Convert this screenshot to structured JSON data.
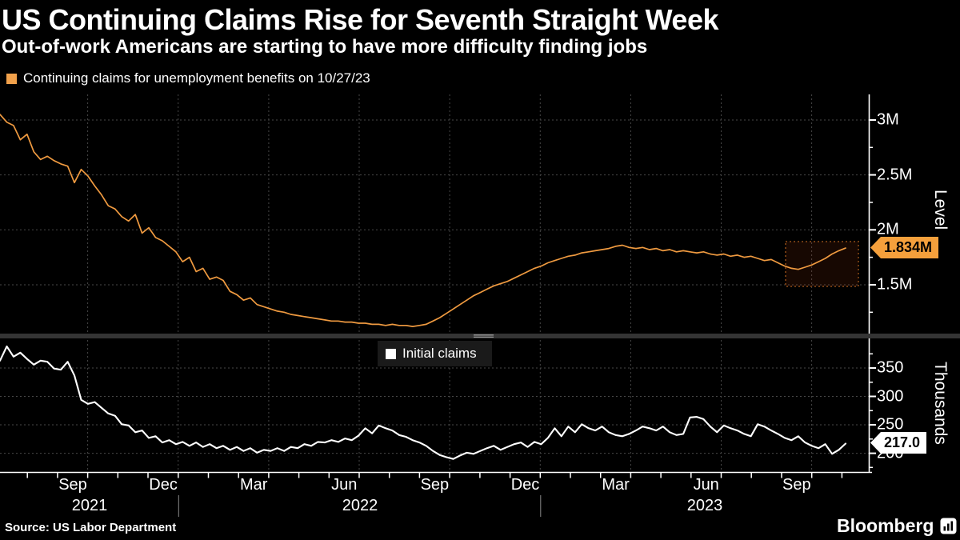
{
  "header": {
    "title": "US Continuing Claims Rise for Seventh Straight Week",
    "subtitle": "Out-of-work Americans are starting to have more difficulty finding jobs"
  },
  "x_axis": {
    "quarter_labels": [
      "Sep",
      "Dec",
      "Mar",
      "Jun",
      "Sep",
      "Dec",
      "Mar",
      "Jun",
      "Sep"
    ],
    "year_labels": [
      "2021",
      "2022",
      "2023"
    ]
  },
  "footer": {
    "source": "Source: US Labor Department",
    "brand": "Bloomberg"
  },
  "colors": {
    "continuing_line": "#ef9a40",
    "continuing_badge": "#f5a03c",
    "initial_line": "#ffffff",
    "grid": "#474747"
  },
  "chart_data": [
    {
      "type": "line",
      "name": "Continuing claims for unemployment benefits on 10/27/23",
      "ylabel": "Level",
      "unit": "millions",
      "ylim": [
        1.07,
        3.233
      ],
      "end_label": "1.834M",
      "end_value": 1.834,
      "yticks_major": [
        {
          "value": 3.0,
          "label": "3M"
        },
        {
          "value": 2.5,
          "label": "2.5M"
        },
        {
          "value": 2.0,
          "label": "2M"
        },
        {
          "value": 1.5,
          "label": "1.5M"
        }
      ],
      "yticks_minor": [
        2.75,
        2.25,
        1.75,
        1.25
      ],
      "values": [
        3.05,
        2.98,
        2.95,
        2.82,
        2.87,
        2.71,
        2.64,
        2.67,
        2.63,
        2.6,
        2.58,
        2.43,
        2.55,
        2.49,
        2.4,
        2.32,
        2.22,
        2.19,
        2.12,
        2.08,
        2.14,
        1.97,
        2.02,
        1.93,
        1.9,
        1.85,
        1.8,
        1.71,
        1.75,
        1.62,
        1.65,
        1.55,
        1.57,
        1.54,
        1.44,
        1.41,
        1.36,
        1.38,
        1.32,
        1.3,
        1.28,
        1.26,
        1.25,
        1.23,
        1.22,
        1.21,
        1.2,
        1.19,
        1.18,
        1.17,
        1.17,
        1.16,
        1.16,
        1.15,
        1.15,
        1.14,
        1.14,
        1.13,
        1.14,
        1.13,
        1.13,
        1.12,
        1.13,
        1.14,
        1.17,
        1.2,
        1.24,
        1.28,
        1.32,
        1.36,
        1.4,
        1.43,
        1.46,
        1.49,
        1.51,
        1.53,
        1.56,
        1.59,
        1.62,
        1.65,
        1.67,
        1.7,
        1.72,
        1.74,
        1.76,
        1.77,
        1.79,
        1.8,
        1.81,
        1.82,
        1.83,
        1.85,
        1.86,
        1.84,
        1.83,
        1.84,
        1.82,
        1.83,
        1.81,
        1.82,
        1.8,
        1.81,
        1.8,
        1.79,
        1.8,
        1.78,
        1.77,
        1.78,
        1.76,
        1.77,
        1.75,
        1.76,
        1.74,
        1.72,
        1.73,
        1.7,
        1.67,
        1.65,
        1.64,
        1.66,
        1.68,
        1.71,
        1.74,
        1.78,
        1.81,
        1.834
      ]
    },
    {
      "type": "line",
      "name": "Initial claims",
      "ylabel": "Thousands",
      "unit": "thousands",
      "ylim": [
        167,
        399.3
      ],
      "end_label": "217.0",
      "end_value": 217.0,
      "yticks_major": [
        {
          "value": 350,
          "label": "350"
        },
        {
          "value": 300,
          "label": "300"
        },
        {
          "value": 250,
          "label": "250"
        },
        {
          "value": 200,
          "label": "200"
        }
      ],
      "yticks_minor": [
        375,
        325,
        275,
        225,
        175
      ],
      "values": [
        363,
        388,
        370,
        377,
        366,
        356,
        363,
        361,
        349,
        347,
        361,
        337,
        294,
        287,
        290,
        280,
        270,
        266,
        251,
        249,
        237,
        240,
        227,
        230,
        219,
        223,
        216,
        220,
        213,
        219,
        211,
        216,
        209,
        213,
        206,
        211,
        204,
        209,
        201,
        206,
        204,
        209,
        204,
        211,
        209,
        216,
        213,
        220,
        219,
        223,
        220,
        226,
        223,
        231,
        244,
        235,
        249,
        244,
        240,
        232,
        229,
        223,
        219,
        213,
        204,
        197,
        193,
        190,
        196,
        201,
        199,
        204,
        209,
        213,
        206,
        211,
        216,
        219,
        211,
        220,
        216,
        227,
        244,
        230,
        247,
        237,
        251,
        244,
        240,
        247,
        237,
        232,
        230,
        234,
        240,
        247,
        244,
        240,
        247,
        237,
        232,
        234,
        263,
        264,
        260,
        247,
        237,
        249,
        244,
        240,
        234,
        230,
        251,
        247,
        240,
        234,
        227,
        223,
        230,
        219,
        213,
        209,
        216,
        199,
        206,
        217
      ]
    }
  ]
}
